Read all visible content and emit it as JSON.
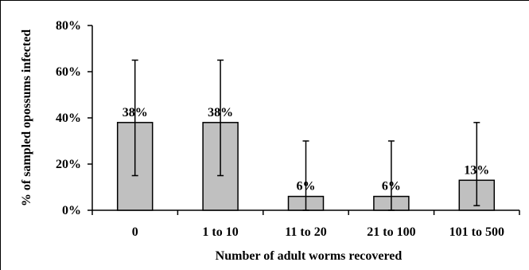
{
  "chart_data": {
    "type": "bar",
    "categories": [
      "0",
      "1 to 10",
      "11 to 20",
      "21 to 100",
      "101 to 500"
    ],
    "series": [
      {
        "values": [
          38,
          38,
          6,
          6,
          13
        ],
        "data_labels": [
          "38%",
          "38%",
          "6%",
          "6%",
          "13%"
        ],
        "error_low": [
          15,
          15,
          0,
          0,
          2
        ],
        "error_high": [
          65,
          65,
          30,
          30,
          38
        ]
      }
    ],
    "xlabel": "Number of adult worms recovered",
    "ylabel": "% of sampled opossums infected",
    "ylim": [
      0,
      80
    ],
    "yticks": [
      0,
      20,
      40,
      60,
      80
    ],
    "ytick_labels": [
      "0%",
      "20%",
      "40%",
      "60%",
      "80%"
    ],
    "grid": false,
    "legend": "none",
    "colors": {
      "bar_fill": "#c0c0c0",
      "bar_stroke": "#000000",
      "error_bar": "#000000"
    }
  }
}
